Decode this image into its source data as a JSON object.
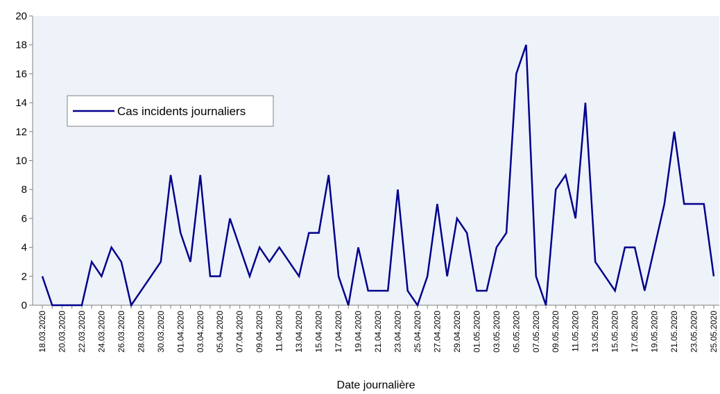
{
  "chart_data": {
    "type": "line",
    "xlabel": "Date journalière",
    "ylabel": "",
    "ylim": [
      0,
      20
    ],
    "yticks": [
      0,
      2,
      4,
      6,
      8,
      10,
      12,
      14,
      16,
      18,
      20
    ],
    "grid": false,
    "legend_position": "left",
    "colors": {
      "line": "#00008B",
      "plot_bg": "#EEF2F9",
      "axis": "#808080"
    },
    "x_tick_labels": [
      "18.03.2020",
      "20.03.2020",
      "22.03.2020",
      "24.03.2020",
      "26.03.2020",
      "28.03.2020",
      "30.03.2020",
      "01.04.2020",
      "03.04.2020",
      "05.04.2020",
      "07.04.2020",
      "09.04.2020",
      "11.04.2020",
      "13.04.2020",
      "15.04.2020",
      "17.04.2020",
      "19.04.2020",
      "21.04.2020",
      "23.04.2020",
      "25.04.2020",
      "27.04.2020",
      "29.04.2020",
      "01.05.2020",
      "03.05.2020",
      "05.05.2020",
      "07.05.2020",
      "09.05.2020",
      "11.05.2020",
      "13.05.2020",
      "15.05.2020",
      "17.05.2020",
      "19.05.2020",
      "21.05.2020",
      "23.05.2020",
      "25.05.2020"
    ],
    "x": [
      "18.03.2020",
      "19.03.2020",
      "20.03.2020",
      "21.03.2020",
      "22.03.2020",
      "23.03.2020",
      "24.03.2020",
      "25.03.2020",
      "26.03.2020",
      "27.03.2020",
      "28.03.2020",
      "29.03.2020",
      "30.03.2020",
      "31.03.2020",
      "01.04.2020",
      "02.04.2020",
      "03.04.2020",
      "04.04.2020",
      "05.04.2020",
      "06.04.2020",
      "07.04.2020",
      "08.04.2020",
      "09.04.2020",
      "10.04.2020",
      "11.04.2020",
      "12.04.2020",
      "13.04.2020",
      "14.04.2020",
      "15.04.2020",
      "16.04.2020",
      "17.04.2020",
      "18.04.2020",
      "19.04.2020",
      "20.04.2020",
      "21.04.2020",
      "22.04.2020",
      "23.04.2020",
      "24.04.2020",
      "25.04.2020",
      "26.04.2020",
      "27.04.2020",
      "28.04.2020",
      "29.04.2020",
      "30.04.2020",
      "01.05.2020",
      "02.05.2020",
      "03.05.2020",
      "04.05.2020",
      "05.05.2020",
      "06.05.2020",
      "07.05.2020",
      "08.05.2020",
      "09.05.2020",
      "10.05.2020",
      "11.05.2020",
      "12.05.2020",
      "13.05.2020",
      "14.05.2020",
      "15.05.2020",
      "16.05.2020",
      "17.05.2020",
      "18.05.2020",
      "19.05.2020",
      "20.05.2020",
      "21.05.2020",
      "22.05.2020",
      "23.05.2020",
      "24.05.2020",
      "25.05.2020"
    ],
    "series": [
      {
        "name": "Cas incidents journaliers",
        "values": [
          2,
          0,
          0,
          0,
          0,
          3,
          2,
          4,
          3,
          0,
          1,
          2,
          3,
          9,
          5,
          3,
          9,
          2,
          2,
          6,
          4,
          2,
          4,
          3,
          4,
          3,
          2,
          5,
          5,
          9,
          2,
          0,
          4,
          1,
          1,
          1,
          8,
          1,
          0,
          2,
          7,
          2,
          6,
          5,
          1,
          1,
          4,
          5,
          16,
          18,
          2,
          0,
          8,
          9,
          6,
          14,
          3,
          2,
          1,
          4,
          4,
          1,
          4,
          7,
          12,
          7,
          7,
          7,
          2
        ]
      }
    ]
  }
}
